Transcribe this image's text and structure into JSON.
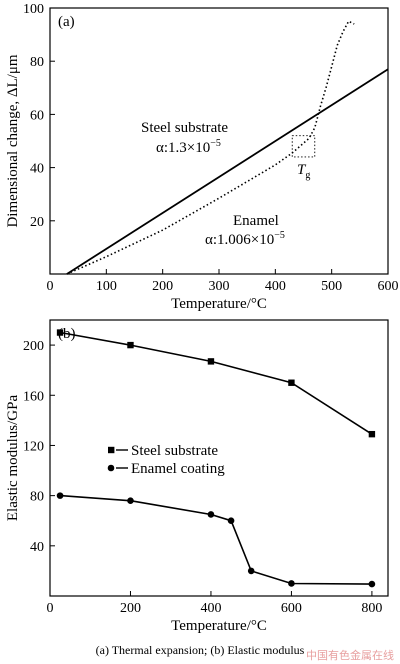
{
  "chart_data": [
    {
      "type": "line",
      "panel_label": "(a)",
      "xlabel": "Temperature/°C",
      "ylabel": "Dimensional change, ΔL/μm",
      "xlim": [
        0,
        600
      ],
      "ylim": [
        0,
        100
      ],
      "xticks": [
        0,
        100,
        200,
        300,
        400,
        500,
        600
      ],
      "yticks": [
        20,
        40,
        60,
        80,
        100
      ],
      "grid": false,
      "series": [
        {
          "name": "Steel substrate",
          "style": "solid",
          "x": [
            30,
            600
          ],
          "y": [
            0,
            77
          ]
        },
        {
          "name": "Enamel",
          "style": "dotted",
          "x": [
            30,
            100,
            200,
            300,
            400,
            430,
            460,
            470,
            480,
            490,
            500,
            510,
            520,
            530,
            540
          ],
          "y": [
            0,
            6.5,
            16.5,
            28.5,
            41,
            45.5,
            51,
            55,
            63,
            70,
            78,
            86,
            91,
            95,
            94
          ]
        }
      ],
      "annotations": [
        {
          "text": "Steel substrate",
          "sub": "α:1.3×10",
          "exp": "−5"
        },
        {
          "text": "Enamel",
          "sub": "α:1.006×10",
          "exp": "−5"
        },
        {
          "text": "T",
          "sub": "g"
        }
      ],
      "tg_box": {
        "x": [
          430,
          470
        ],
        "y": [
          44,
          52
        ]
      }
    },
    {
      "type": "line",
      "panel_label": "(b)",
      "xlabel": "Temperature/°C",
      "ylabel": "Elastic modulus/GPa",
      "xlim": [
        0,
        840
      ],
      "ylim": [
        0,
        220
      ],
      "xticks": [
        0,
        200,
        400,
        600,
        800
      ],
      "yticks": [
        40,
        80,
        120,
        160,
        200
      ],
      "grid": false,
      "legend": "center-left",
      "series": [
        {
          "name": "Steel substrate",
          "marker": "square",
          "x": [
            25,
            200,
            400,
            600,
            800
          ],
          "y": [
            210,
            200,
            187,
            170,
            129
          ]
        },
        {
          "name": "Enamel coating",
          "marker": "circle",
          "x": [
            25,
            200,
            400,
            450,
            500,
            600,
            800
          ],
          "y": [
            80,
            76,
            65,
            60,
            20,
            10,
            9.5
          ]
        }
      ]
    }
  ],
  "caption": "(a)  Thermal  expansion;  (b)  Elastic  modulus",
  "watermark": "中国有色金属在线"
}
